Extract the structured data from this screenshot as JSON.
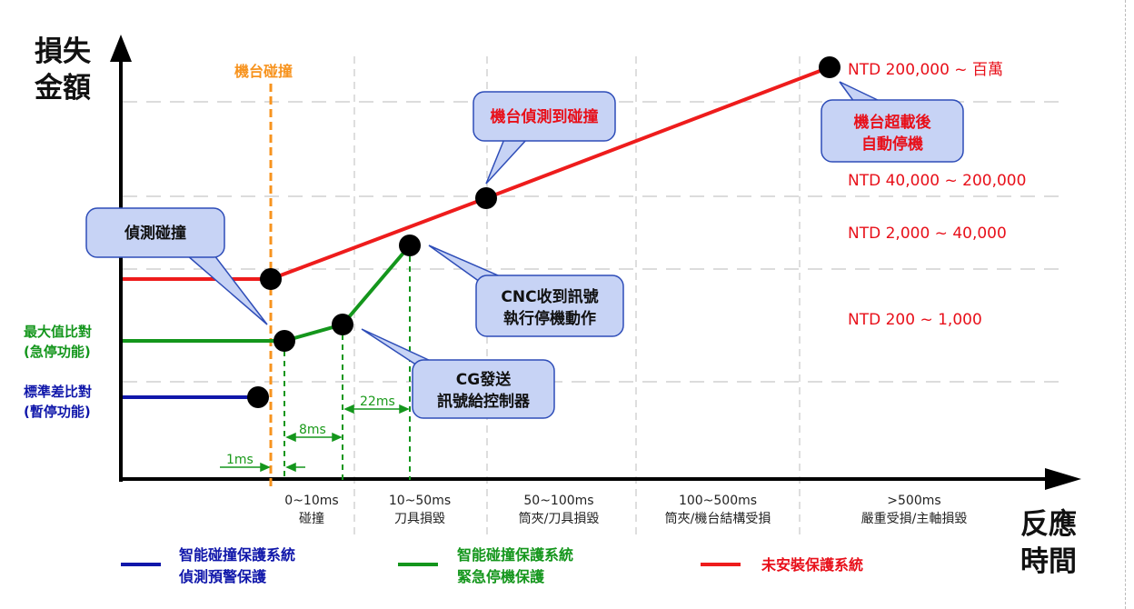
{
  "colors": {
    "loss_line": "#ee1c1c",
    "emergency_line": "#14961c",
    "warning_line": "#1017aa",
    "collision_marker": "#f7931e",
    "grid": "#c8c8c8",
    "callout_fill": "#c7d3f5",
    "callout_border": "#2e4db8"
  },
  "y_axis": {
    "line1": "損失",
    "line2": "金額"
  },
  "x_axis": {
    "line1": "反應",
    "line2": "時間"
  },
  "collision_marker_label": "機台碰撞",
  "loss_levels": [
    "NTD 200,000 ~ 百萬",
    "NTD 40,000 ~ 200,000",
    "NTD 2,000 ~ 40,000",
    "NTD 200 ~ 1,000"
  ],
  "time_bands": [
    {
      "range": "0~10ms",
      "desc": "碰撞"
    },
    {
      "range": "10~50ms",
      "desc": "刀具損毀"
    },
    {
      "range": "50~100ms",
      "desc": "筒夾/刀具損毀"
    },
    {
      "range": "100~500ms",
      "desc": "筒夾/機台結構受損"
    },
    {
      "range": ">500ms",
      "desc": "嚴重受損/主軸損毀"
    }
  ],
  "left_labels": {
    "max_compare": {
      "line1": "最大值比對",
      "line2": "(急停功能)"
    },
    "std_compare": {
      "line1": "標準差比對",
      "line2": "(暫停功能)"
    }
  },
  "intervals": {
    "a": "1ms",
    "b": "8ms",
    "c": "22ms"
  },
  "callouts": {
    "detect": "偵測碰撞",
    "machine_detect": "機台偵測到碰撞",
    "overload": {
      "line1": "機台超載後",
      "line2": "自動停機"
    },
    "cnc": {
      "line1": "CNC收到訊號",
      "line2": "執行停機動作"
    },
    "cg": {
      "line1": "CG發送",
      "line2": "訊號給控制器"
    }
  },
  "legend": [
    {
      "line1": "智能碰撞保護系統",
      "line2": "偵測預警保護",
      "color": "#1017aa"
    },
    {
      "line1": "智能碰撞保護系統",
      "line2": "緊急停機保護",
      "color": "#14961c"
    },
    {
      "line1": "未安裝保護系統",
      "line2": "",
      "color": "#ee1c1c"
    }
  ]
}
